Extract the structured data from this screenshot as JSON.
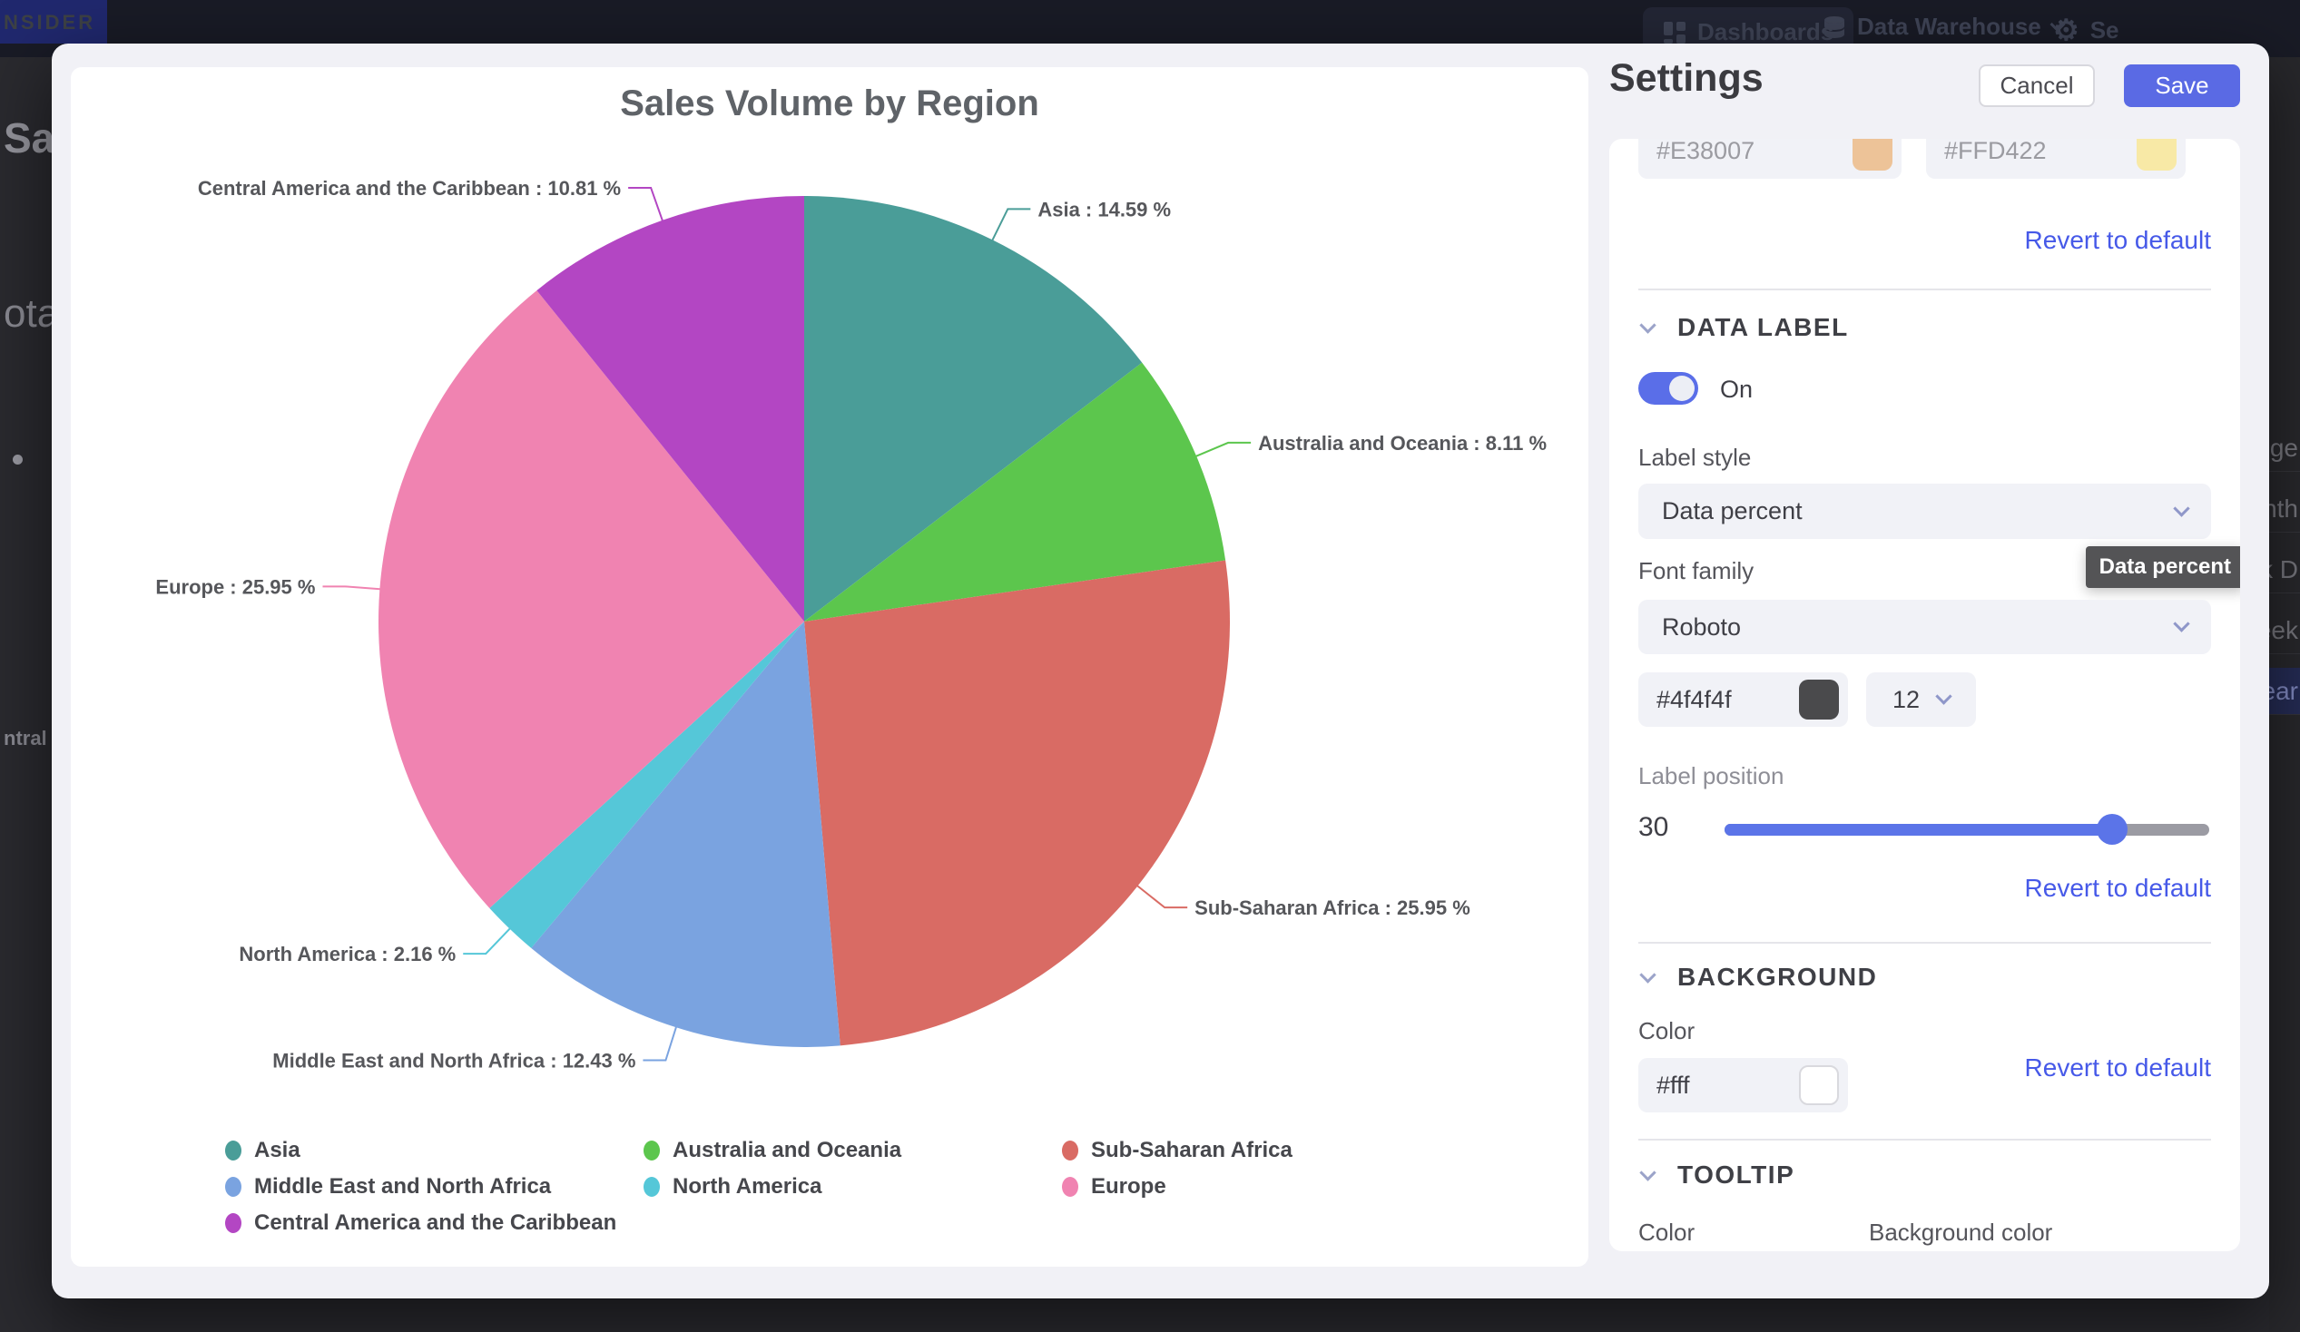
{
  "navbar": {
    "logo_text": "NSIDER",
    "dashboards_label": "Dashboards",
    "data_warehouse_label": "Data Warehouse",
    "settings_partial_label": "Se"
  },
  "background_page": {
    "left_fragments": [
      "Sal",
      "ota",
      "ntral"
    ],
    "right_menu_fragments": [
      "nge",
      "nth",
      "k D",
      "eek",
      "ear"
    ],
    "right_menu_highlighted_index": 4
  },
  "chart_data": {
    "type": "pie",
    "title": "Sales Volume by Region",
    "unit": "%",
    "label_format": "{name} : {value} %",
    "start_angle_deg": 0,
    "direction": "clockwise",
    "legend_position": "bottom",
    "slices": [
      {
        "name": "Asia",
        "value": 14.59,
        "color": "#4a9d98"
      },
      {
        "name": "Australia and Oceania",
        "value": 8.11,
        "color": "#5cc64d"
      },
      {
        "name": "Sub-Saharan Africa",
        "value": 25.95,
        "color": "#d96b64"
      },
      {
        "name": "Middle East and North Africa",
        "value": 12.43,
        "color": "#7aa3e0"
      },
      {
        "name": "North America",
        "value": 2.16,
        "color": "#55c7d8"
      },
      {
        "name": "Europe",
        "value": 25.95,
        "color": "#f083b1"
      },
      {
        "name": "Central America and the Caribbean",
        "value": 10.81,
        "color": "#b346c3"
      }
    ],
    "legend_order": [
      "Asia",
      "Australia and Oceania",
      "Sub-Saharan Africa",
      "Middle East and North Africa",
      "North America",
      "Europe",
      "Central America and the Caribbean"
    ]
  },
  "settings": {
    "title": "Settings",
    "cancel_label": "Cancel",
    "save_label": "Save",
    "color_inputs": [
      {
        "value": "#E38007",
        "swatch": "#edc398"
      },
      {
        "value": "#FFD422",
        "swatch": "#f8e9a6"
      }
    ],
    "revert_label": "Revert to default",
    "data_label_section": {
      "title": "DATA LABEL",
      "toggle_state": "On",
      "label_style_label": "Label style",
      "label_style_value": "Data percent",
      "tooltip_text": "Data percent",
      "font_family_label": "Font family",
      "font_family_value": "Roboto",
      "font_color_value": "#4f4f4f",
      "font_color_swatch": "#4a4a4c",
      "font_size_value": "12",
      "label_position_label": "Label position",
      "label_position_value": "30",
      "revert_label": "Revert to default"
    },
    "background_section": {
      "title": "BACKGROUND",
      "color_label": "Color",
      "color_value": "#fff",
      "color_swatch": "#ffffff",
      "revert_label": "Revert to default"
    },
    "tooltip_section": {
      "title": "TOOLTIP",
      "color_label": "Color",
      "background_color_label": "Background color"
    }
  },
  "colors": {
    "accent_blue": "#5a6ae4",
    "link_blue": "#4659e8",
    "slider_blue": "#5b74e8",
    "toggle_blue": "#5a6ee8",
    "modal_bg": "#f1f1f6",
    "navbar_bg": "#191b26"
  }
}
